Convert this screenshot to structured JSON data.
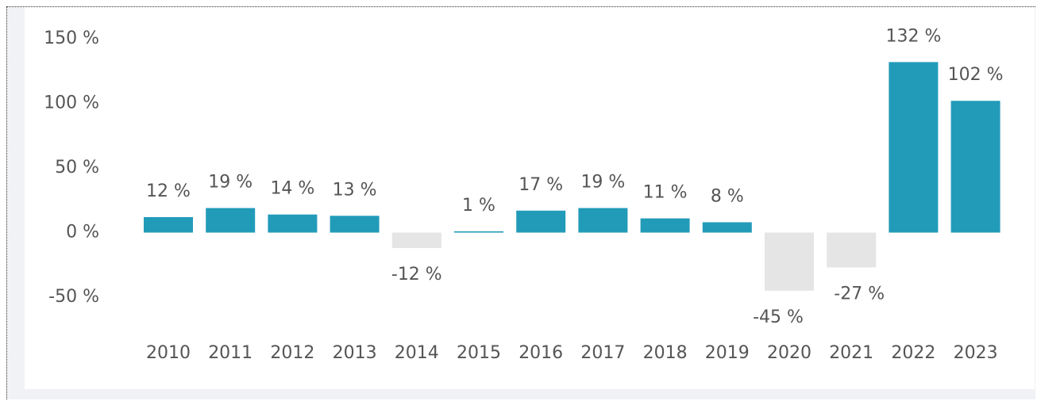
{
  "chart_data": {
    "type": "bar",
    "categories": [
      "2010",
      "2011",
      "2012",
      "2013",
      "2014",
      "2015",
      "2016",
      "2017",
      "2018",
      "2019",
      "2020",
      "2021",
      "2022",
      "2023"
    ],
    "values": [
      12,
      19,
      14,
      13,
      -12,
      1,
      17,
      19,
      11,
      8,
      -45,
      -27,
      132,
      102
    ],
    "value_labels": [
      "12 %",
      "19 %",
      "14 %",
      "13 %",
      "-12 %",
      "1 %",
      "17 %",
      "19 %",
      "11 %",
      "8 %",
      "-45 %",
      "-27 %",
      "132 %",
      "102 %"
    ],
    "color": "#229bb9",
    "negative_color": "#e5e5e5",
    "ylim": [
      -50,
      150
    ],
    "yticks": [
      {
        "value": -50,
        "label": "-50 %"
      },
      {
        "value": 0,
        "label": "0 %"
      },
      {
        "value": 50,
        "label": "50 %"
      },
      {
        "value": 100,
        "label": "100 %"
      },
      {
        "value": 150,
        "label": "150 %"
      }
    ],
    "grid": false
  }
}
